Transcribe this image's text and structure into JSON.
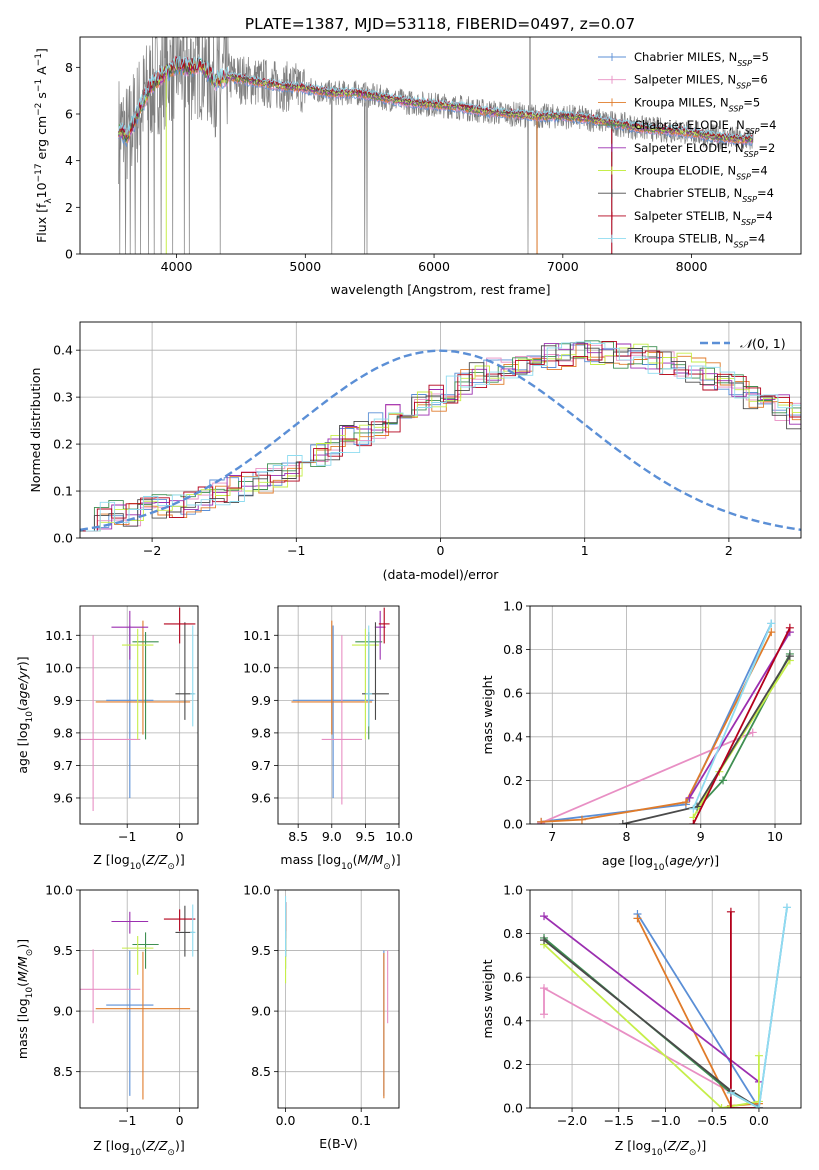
{
  "title": "PLATE=1387, MJD=53118, FIBERID=0497, z=0.07",
  "colors": {
    "Chabrier MILES": "#5b8fd6",
    "Salpeter MILES": "#e88fc4",
    "Kroupa MILES": "#e07b2a",
    "Chabrier ELODIE": "#3f8f52",
    "Salpeter ELODIE": "#9b2fb0",
    "Kroupa ELODIE": "#c6ee4a",
    "Chabrier STELIB": "#4a4a4a",
    "Salpeter STELIB": "#b3001b",
    "Kroupa STELIB": "#8fdcf0",
    "gauss": "#5b8fd6",
    "data": "#7f7f7f",
    "grid": "#b0b0b0"
  },
  "chart_data": [
    {
      "id": "spectrum",
      "type": "line",
      "xlabel": "wavelength [Angstrom, rest frame]",
      "ylabel_parts": [
        "Flux [f",
        "λ",
        "10",
        "−17",
        " erg cm",
        "−2",
        " s",
        "−1",
        " A",
        "−1",
        "]"
      ],
      "xlim": [
        3250,
        8850
      ],
      "ylim": [
        0,
        9.3
      ],
      "xticks": [
        "4000",
        "5000",
        "6000",
        "7000",
        "8000"
      ],
      "xtick_values": [
        4000,
        5000,
        6000,
        7000,
        8000
      ],
      "yticks": [
        "0",
        "2",
        "4",
        "6",
        "8"
      ],
      "ytick_values": [
        0,
        2,
        4,
        6,
        8
      ],
      "legend": [
        {
          "name": "Chabrier MILES",
          "nssp": "5"
        },
        {
          "name": "Salpeter MILES",
          "nssp": "6"
        },
        {
          "name": "Kroupa MILES",
          "nssp": "5"
        },
        {
          "name": "Chabrier ELODIE",
          "nssp": "4"
        },
        {
          "name": "Salpeter ELODIE",
          "nssp": "2"
        },
        {
          "name": "Kroupa ELODIE",
          "nssp": "4"
        },
        {
          "name": "Chabrier STELIB",
          "nssp": "4"
        },
        {
          "name": "Salpeter STELIB",
          "nssp": "4"
        },
        {
          "name": "Kroupa STELIB",
          "nssp": "4"
        }
      ],
      "legend_label_parts": [
        ", N",
        "SSP",
        "="
      ],
      "legend_placement": "upper right",
      "model_continuum": {
        "x": [
          3550,
          3620,
          3700,
          3800,
          3900,
          4000,
          4100,
          4200,
          4300,
          4400,
          4600,
          4800,
          5000,
          5200,
          5400,
          5600,
          5800,
          6000,
          6200,
          6400,
          6600,
          6800,
          7000,
          7200,
          7400,
          7600,
          7800,
          8000,
          8200,
          8400,
          8450
        ],
        "y": [
          5.4,
          5.0,
          6.1,
          7.2,
          7.7,
          8.1,
          8.0,
          8.1,
          7.4,
          7.6,
          7.4,
          7.2,
          7.1,
          6.9,
          6.9,
          6.7,
          6.5,
          6.4,
          6.3,
          6.1,
          6.0,
          5.9,
          5.9,
          5.8,
          5.6,
          5.4,
          5.3,
          5.2,
          5.0,
          4.9,
          4.9
        ]
      },
      "data_spikes_to_zero_at": [
        3560,
        3605,
        3640,
        3680,
        3720,
        3780,
        3825,
        3880,
        3970,
        4060,
        4100,
        4340,
        5205,
        5460,
        5480,
        6730,
        6800,
        7380
      ]
    },
    {
      "id": "residuals",
      "type": "histogram",
      "xlabel": "(data-model)/error",
      "ylabel": "Normed distribution",
      "xlim": [
        -2.5,
        2.5
      ],
      "ylim": [
        0,
        0.46
      ],
      "xticks": [
        "−2",
        "−1",
        "0",
        "1",
        "2"
      ],
      "xtick_values": [
        -2,
        -1,
        0,
        1,
        2
      ],
      "yticks": [
        "0.0",
        "0.1",
        "0.2",
        "0.3",
        "0.4"
      ],
      "ytick_values": [
        0,
        0.1,
        0.2,
        0.3,
        0.4
      ],
      "legend": [
        "N(0,1)"
      ],
      "legend_text": {
        "script": "𝒩",
        "args": "(0, 1)"
      },
      "legend_placement": "upper right",
      "bin_width": 0.1,
      "bin_edges_start": -2.5,
      "base_density": [
        0.045,
        0.048,
        0.052,
        0.055,
        0.06,
        0.065,
        0.07,
        0.078,
        0.085,
        0.095,
        0.105,
        0.115,
        0.125,
        0.138,
        0.15,
        0.165,
        0.18,
        0.195,
        0.21,
        0.225,
        0.24,
        0.255,
        0.27,
        0.285,
        0.3,
        0.315,
        0.33,
        0.345,
        0.355,
        0.365,
        0.375,
        0.38,
        0.385,
        0.39,
        0.392,
        0.395,
        0.395,
        0.39,
        0.385,
        0.38,
        0.375,
        0.365,
        0.355,
        0.345,
        0.335,
        0.32,
        0.305,
        0.29,
        0.275,
        0.26,
        0.245,
        0.23,
        0.215,
        0.2,
        0.185,
        0.17,
        0.155,
        0.14,
        0.128,
        0.115,
        0.105,
        0.095,
        0.085,
        0.078,
        0.07,
        0.063,
        0.057,
        0.051,
        0.046,
        0.042,
        0.038,
        0.034,
        0.03,
        0.027,
        0.025,
        0.022,
        0.02,
        0.018,
        0.016,
        0.015
      ]
    },
    {
      "id": "age_vs_Z",
      "type": "scatter",
      "xlabel": "Z [log10(Z/Z⊙)]",
      "ylabel": "age  [log10(age/yr)]",
      "xlim": [
        -1.9,
        0.35
      ],
      "ylim": [
        9.52,
        10.19
      ],
      "xticks": [
        "−1",
        "0"
      ],
      "xtick_values": [
        -1,
        0
      ],
      "yticks": [
        "9.6",
        "9.7",
        "9.8",
        "9.9",
        "10.0",
        "10.1"
      ],
      "ytick_values": [
        9.6,
        9.7,
        9.8,
        9.9,
        10.0,
        10.1
      ],
      "points": [
        {
          "series": "Chabrier MILES",
          "x": -0.95,
          "y": 9.9,
          "xerr": 0.45,
          "yerr": [
            0.3,
            0.23
          ]
        },
        {
          "series": "Salpeter MILES",
          "x": -1.65,
          "y": 9.78,
          "xerr": 0.9,
          "yerr": [
            0.22,
            0.32
          ]
        },
        {
          "series": "Kroupa MILES",
          "x": -0.7,
          "y": 9.895,
          "xerr": 0.9,
          "yerr": [
            0.1,
            0.25
          ]
        },
        {
          "series": "Chabrier ELODIE",
          "x": -0.65,
          "y": 10.08,
          "xerr": 0.25,
          "yerr": [
            0.3,
            0.03
          ]
        },
        {
          "series": "Salpeter ELODIE",
          "x": -0.95,
          "y": 10.125,
          "xerr": 0.35,
          "yerr": [
            0.1,
            0.05
          ]
        },
        {
          "series": "Kroupa ELODIE",
          "x": -0.8,
          "y": 10.07,
          "xerr": 0.3,
          "yerr": [
            0.29,
            0.05
          ]
        },
        {
          "series": "Chabrier STELIB",
          "x": 0.1,
          "y": 9.92,
          "xerr": 0.18,
          "yerr": [
            0.08,
            0.22
          ]
        },
        {
          "series": "Salpeter STELIB",
          "x": 0.0,
          "y": 10.135,
          "xerr": 0.3,
          "yerr": [
            0.06,
            0.05
          ]
        },
        {
          "series": "Kroupa STELIB",
          "x": 0.25,
          "y": 9.92,
          "xerr": 0.05,
          "yerr": [
            0.1,
            0.21
          ]
        }
      ]
    },
    {
      "id": "age_vs_mass",
      "type": "scatter",
      "xlabel": "mass [log10(M/M⊙)]",
      "ylabel": "",
      "xlim": [
        8.2,
        10.0
      ],
      "ylim": [
        9.52,
        10.19
      ],
      "xticks": [
        "8.5",
        "9.0",
        "9.5",
        "10.0"
      ],
      "xtick_values": [
        8.5,
        9.0,
        9.5,
        10.0
      ],
      "yticks": [
        "9.6",
        "9.7",
        "9.8",
        "9.9",
        "10.0",
        "10.1"
      ],
      "ytick_values": [
        9.6,
        9.7,
        9.8,
        9.9,
        10.0,
        10.1
      ],
      "points": [
        {
          "series": "Chabrier MILES",
          "x": 9.02,
          "y": 9.9,
          "xerr": 0.6,
          "yerr": [
            0.3,
            0.23
          ]
        },
        {
          "series": "Salpeter MILES",
          "x": 9.15,
          "y": 9.78,
          "xerr": 0.3,
          "yerr": [
            0.2,
            0.32
          ]
        },
        {
          "series": "Kroupa MILES",
          "x": 9.0,
          "y": 9.895,
          "xerr": 0.6,
          "yerr": [
            0.1,
            0.25
          ]
        },
        {
          "series": "Chabrier ELODIE",
          "x": 9.55,
          "y": 10.08,
          "xerr": 0.2,
          "yerr": [
            0.3,
            0.03
          ]
        },
        {
          "series": "Salpeter ELODIE",
          "x": 9.72,
          "y": 10.125,
          "xerr": 0.08,
          "yerr": [
            0.1,
            0.05
          ]
        },
        {
          "series": "Kroupa ELODIE",
          "x": 9.5,
          "y": 10.07,
          "xerr": 0.2,
          "yerr": [
            0.29,
            0.05
          ]
        },
        {
          "series": "Chabrier STELIB",
          "x": 9.65,
          "y": 9.92,
          "xerr": 0.2,
          "yerr": [
            0.08,
            0.22
          ]
        },
        {
          "series": "Salpeter STELIB",
          "x": 9.78,
          "y": 10.135,
          "xerr": 0.08,
          "yerr": [
            0.06,
            0.05
          ]
        },
        {
          "series": "Kroupa STELIB",
          "x": 9.55,
          "y": 9.92,
          "xerr": 0.05,
          "yerr": [
            0.1,
            0.21
          ]
        }
      ]
    },
    {
      "id": "mass_weight_vs_age",
      "type": "line",
      "xlabel": "age  [log10(age/yr)]",
      "ylabel": "mass weight",
      "xlim": [
        6.7,
        10.35
      ],
      "ylim": [
        0,
        1.0
      ],
      "xticks": [
        "7",
        "8",
        "9",
        "10"
      ],
      "xtick_values": [
        7,
        8,
        9,
        10
      ],
      "yticks": [
        "0.0",
        "0.2",
        "0.4",
        "0.6",
        "0.8",
        "1.0"
      ],
      "ytick_values": [
        0,
        0.2,
        0.4,
        0.6,
        0.8,
        1.0
      ],
      "series": [
        {
          "name": "Chabrier MILES",
          "x": [
            6.85,
            8.8,
            9.95
          ],
          "y": [
            0.01,
            0.09,
            0.92
          ]
        },
        {
          "name": "Salpeter MILES",
          "x": [
            6.85,
            9.7
          ],
          "y": [
            0.005,
            0.42
          ]
        },
        {
          "name": "Kroupa MILES",
          "x": [
            6.85,
            7.4,
            8.8,
            9.95
          ],
          "y": [
            0.01,
            0.02,
            0.1,
            0.88
          ]
        },
        {
          "name": "Chabrier ELODIE",
          "x": [
            8.95,
            9.3,
            10.2
          ],
          "y": [
            0.07,
            0.2,
            0.78
          ]
        },
        {
          "name": "Salpeter ELODIE",
          "x": [
            8.85,
            10.2
          ],
          "y": [
            0.12,
            0.88
          ]
        },
        {
          "name": "Kroupa ELODIE",
          "x": [
            8.9,
            9.25,
            10.2
          ],
          "y": [
            0.03,
            0.24,
            0.75
          ]
        },
        {
          "name": "Chabrier STELIB",
          "x": [
            7.95,
            8.95,
            10.2
          ],
          "y": [
            0.0,
            0.08,
            0.77
          ]
        },
        {
          "name": "Salpeter STELIB",
          "x": [
            8.9,
            10.2
          ],
          "y": [
            0.0,
            0.9
          ]
        },
        {
          "name": "Kroupa STELIB",
          "x": [
            8.9,
            9.95
          ],
          "y": [
            0.07,
            0.92
          ]
        }
      ]
    },
    {
      "id": "mass_vs_Z",
      "type": "scatter",
      "xlabel": "Z [log10(Z/Z⊙)]",
      "ylabel": "mass [log10(M/M⊙)]",
      "xlim": [
        -1.9,
        0.35
      ],
      "ylim": [
        8.2,
        10.0
      ],
      "xticks": [
        "−1",
        "0"
      ],
      "xtick_values": [
        -1,
        0
      ],
      "yticks": [
        "8.5",
        "9.0",
        "9.5",
        "10.0"
      ],
      "ytick_values": [
        8.5,
        9.0,
        9.5,
        10.0
      ],
      "points": [
        {
          "series": "Chabrier MILES",
          "x": -0.95,
          "y": 9.05,
          "xerr": 0.45,
          "yerr": [
            0.75,
            0.45
          ]
        },
        {
          "series": "Salpeter MILES",
          "x": -1.65,
          "y": 9.18,
          "xerr": 0.9,
          "yerr": [
            0.28,
            0.33
          ]
        },
        {
          "series": "Kroupa MILES",
          "x": -0.7,
          "y": 9.02,
          "xerr": 0.9,
          "yerr": [
            0.75,
            0.47
          ]
        },
        {
          "series": "Chabrier ELODIE",
          "x": -0.65,
          "y": 9.55,
          "xerr": 0.25,
          "yerr": [
            0.2,
            0.1
          ]
        },
        {
          "series": "Salpeter ELODIE",
          "x": -0.95,
          "y": 9.74,
          "xerr": 0.35,
          "yerr": [
            0.1,
            0.08
          ]
        },
        {
          "series": "Kroupa ELODIE",
          "x": -0.8,
          "y": 9.52,
          "xerr": 0.3,
          "yerr": [
            0.22,
            0.1
          ]
        },
        {
          "series": "Chabrier STELIB",
          "x": 0.1,
          "y": 9.65,
          "xerr": 0.18,
          "yerr": [
            0.2,
            0.22
          ]
        },
        {
          "series": "Salpeter STELIB",
          "x": 0.0,
          "y": 9.76,
          "xerr": 0.3,
          "yerr": [
            0.1,
            0.08
          ]
        },
        {
          "series": "Kroupa STELIB",
          "x": 0.25,
          "y": 9.65,
          "xerr": 0.05,
          "yerr": [
            0.2,
            0.23
          ]
        }
      ]
    },
    {
      "id": "mass_vs_EBV",
      "type": "scatter",
      "xlabel": "E(B-V)",
      "ylabel": "",
      "xlim": [
        -0.01,
        0.15
      ],
      "ylim": [
        8.2,
        10.0
      ],
      "xticks": [
        "0.0",
        "0.1"
      ],
      "xtick_values": [
        0,
        0.1
      ],
      "yticks": [
        "8.5",
        "9.0",
        "9.5",
        "10.0"
      ],
      "ytick_values": [
        8.5,
        9.0,
        9.5,
        10.0
      ],
      "points": [
        {
          "series": "Chabrier MILES",
          "x": 0.13,
          "y": 9.05,
          "xerr": 0,
          "yerr": [
            0.75,
            0.45
          ]
        },
        {
          "series": "Salpeter MILES",
          "x": 0.135,
          "y": 9.2,
          "xerr": 0,
          "yerr": [
            0.3,
            0.3
          ]
        },
        {
          "series": "Kroupa MILES",
          "x": 0.13,
          "y": 9.0,
          "xerr": 0,
          "yerr": [
            0.72,
            0.48
          ]
        },
        {
          "series": "Chabrier ELODIE",
          "x": 0.0,
          "y": 9.55,
          "xerr": 0,
          "yerr": [
            0.2,
            0.35
          ]
        },
        {
          "series": "Salpeter ELODIE",
          "x": 0.0,
          "y": 9.7,
          "xerr": 0,
          "yerr": [
            0.1,
            0.2
          ]
        },
        {
          "series": "Kroupa ELODIE",
          "x": 0.0,
          "y": 9.45,
          "xerr": 0,
          "yerr": [
            0.22,
            0.4
          ]
        },
        {
          "series": "Chabrier STELIB",
          "x": 0.0,
          "y": 9.65,
          "xerr": 0,
          "yerr": [
            0.2,
            0.25
          ]
        },
        {
          "series": "Salpeter STELIB",
          "x": 0.0,
          "y": 9.76,
          "xerr": 0,
          "yerr": [
            0.1,
            0.14
          ]
        },
        {
          "series": "Kroupa STELIB",
          "x": 0.0,
          "y": 9.65,
          "xerr": 0,
          "yerr": [
            0.2,
            0.3
          ]
        }
      ]
    },
    {
      "id": "mass_weight_vs_Z",
      "type": "line",
      "xlabel": "Z [log10(Z/Z⊙)]",
      "ylabel": "mass weight",
      "xlim": [
        -2.45,
        0.45
      ],
      "ylim": [
        0,
        1.0
      ],
      "xticks": [
        "−2.0",
        "−1.5",
        "−1.0",
        "−0.5",
        "0.0"
      ],
      "xtick_values": [
        -2.0,
        -1.5,
        -1.0,
        -0.5,
        0.0
      ],
      "yticks": [
        "0.0",
        "0.2",
        "0.4",
        "0.6",
        "0.8",
        "1.0"
      ],
      "ytick_values": [
        0,
        0.2,
        0.4,
        0.6,
        0.8,
        1.0
      ],
      "series": [
        {
          "name": "Chabrier MILES",
          "x": [
            -1.3,
            0.0,
            0.3
          ],
          "y": [
            0.89,
            0.0,
            0.92
          ]
        },
        {
          "name": "Salpeter MILES",
          "x": [
            -2.3,
            -2.3,
            0.0
          ],
          "y": [
            0.43,
            0.55,
            0.0
          ]
        },
        {
          "name": "Kroupa MILES",
          "x": [
            -1.3,
            -0.3,
            0.0
          ],
          "y": [
            0.87,
            0.01,
            0.02
          ]
        },
        {
          "name": "Chabrier ELODIE",
          "x": [
            -2.3,
            -0.3,
            0.0
          ],
          "y": [
            0.78,
            0.07,
            0.0
          ]
        },
        {
          "name": "Salpeter ELODIE",
          "x": [
            -2.3,
            0.0
          ],
          "y": [
            0.88,
            0.12
          ]
        },
        {
          "name": "Kroupa ELODIE",
          "x": [
            -2.3,
            -0.4,
            0.0,
            0.0
          ],
          "y": [
            0.75,
            0.0,
            0.03,
            0.24
          ]
        },
        {
          "name": "Chabrier STELIB",
          "x": [
            -2.3,
            -0.3,
            0.0
          ],
          "y": [
            0.77,
            0.08,
            0.0
          ]
        },
        {
          "name": "Salpeter STELIB",
          "x": [
            -0.3,
            -0.3,
            0.0
          ],
          "y": [
            0.9,
            0.0,
            0.0
          ]
        },
        {
          "name": "Kroupa STELIB",
          "x": [
            -0.3,
            0.0,
            0.3
          ],
          "y": [
            0.07,
            0.0,
            0.92
          ]
        }
      ]
    }
  ]
}
